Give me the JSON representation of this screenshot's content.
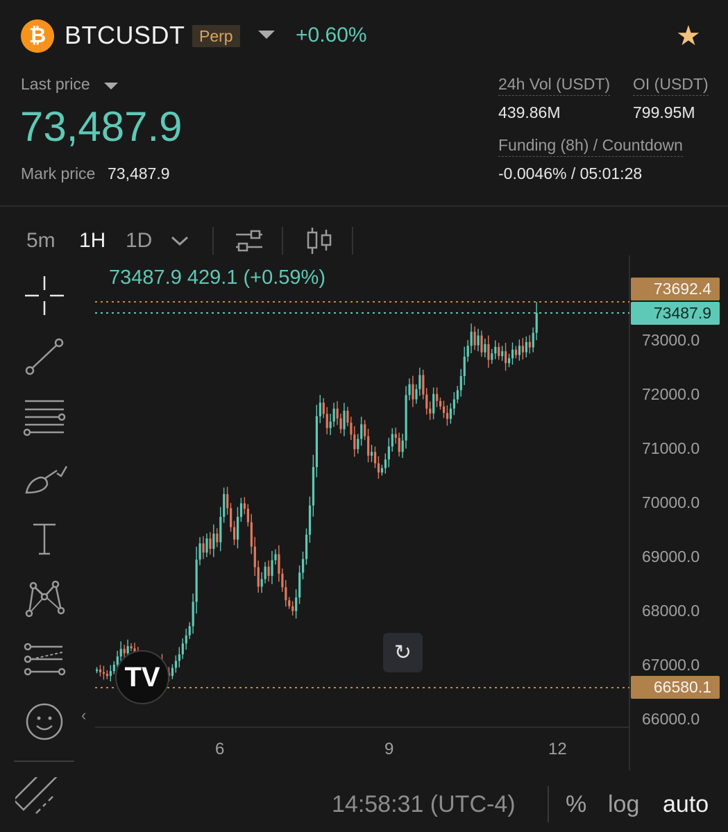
{
  "header": {
    "coin_icon": "bitcoin-icon",
    "coin_glyph": "₿",
    "symbol": "BTCUSDT",
    "badge": "Perp",
    "change": "+0.60%",
    "favorite_icon": "star-icon"
  },
  "price": {
    "last_label": "Last price",
    "last_value": "73,487.9",
    "mark_label": "Mark price",
    "mark_value": "73,487.9"
  },
  "stats": {
    "vol_label": "24h Vol (USDT)",
    "vol_value": "439.86M",
    "oi_label": "OI (USDT)",
    "oi_value": "799.95M",
    "funding_label": "Funding (8h) / Countdown",
    "funding_value": "-0.0046% / 05:01:28"
  },
  "toolbar": {
    "timeframes": [
      "5m",
      "1H",
      "1D"
    ],
    "active_timeframe": "1H"
  },
  "tools": [
    "crosshair-icon",
    "trend-line-icon",
    "fib-levels-icon",
    "brush-icon",
    "text-icon",
    "pattern-icon",
    "forecast-icon",
    "emoji-icon",
    "ruler-icon"
  ],
  "chart": {
    "ohlc_text": "73487.9  429.1 (+0.59%)",
    "high_tag": "73692.4",
    "last_tag": "73487.9",
    "low_tag": "66580.1",
    "tv_logo": "TV",
    "reset_glyph": "↻",
    "collapse_glyph": "‹"
  },
  "footer": {
    "time": "14:58:31 (UTC-4)",
    "percent": "%",
    "log": "log",
    "auto": "auto"
  },
  "colors": {
    "up": "#5ec9b6",
    "down": "#e0795e",
    "accent": "#b0814a"
  },
  "chart_data": {
    "type": "candlestick",
    "interval": "1H",
    "y_ticks": [
      "73000.0",
      "72000.0",
      "71000.0",
      "70000.0",
      "69000.0",
      "68000.0",
      "67000.0",
      "66000.0"
    ],
    "x_ticks": [
      "6",
      "9",
      "12"
    ],
    "ylim": [
      66000,
      74500
    ],
    "last": 73487.9,
    "high_marker": 73692.4,
    "low_marker": 66580.1,
    "closes": [
      66900,
      66850,
      66820,
      66780,
      66870,
      66990,
      67140,
      67280,
      67200,
      67330,
      67290,
      67180,
      67080,
      67000,
      66950,
      66890,
      66860,
      66960,
      67050,
      66900,
      66840,
      66780,
      66930,
      67060,
      67180,
      67380,
      67530,
      67700,
      68150,
      68930,
      69230,
      69060,
      69320,
      69130,
      69410,
      69250,
      69720,
      70140,
      69880,
      69530,
      69300,
      69720,
      69970,
      69870,
      69620,
      69170,
      68790,
      68430,
      68570,
      68800,
      68630,
      68920,
      69030,
      68670,
      68420,
      68180,
      68070,
      67980,
      68230,
      68690,
      68940,
      69390,
      69930,
      70640,
      71580,
      71830,
      71620,
      71360,
      71480,
      71720,
      71540,
      71340,
      71680,
      71460,
      71240,
      70970,
      71160,
      71430,
      71210,
      70850,
      70920,
      70710,
      70540,
      70620,
      70780,
      71020,
      71250,
      71180,
      70920,
      71130,
      71970,
      72170,
      71890,
      72080,
      72340,
      71980,
      71720,
      71630,
      71990,
      71860,
      71760,
      71640,
      71530,
      71720,
      71890,
      72060,
      72320,
      72680,
      72880,
      73140,
      72890,
      73070,
      72760,
      72910,
      72620,
      72740,
      72860,
      72690,
      72780,
      72560,
      72650,
      72810,
      72710,
      72880,
      72760,
      72950,
      72850,
      73120,
      73487.9
    ]
  }
}
